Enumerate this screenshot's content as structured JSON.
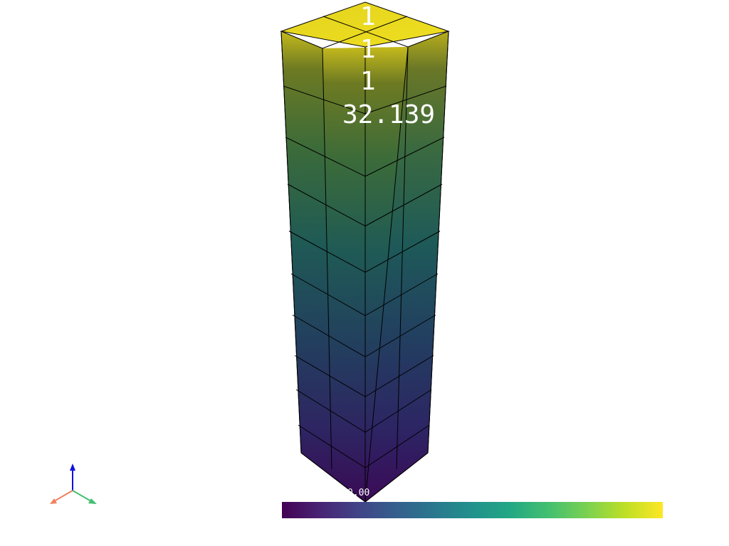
{
  "labels": {
    "row1": "1",
    "row2": "1",
    "row3": "1",
    "row4": "32.139"
  },
  "colorbar": {
    "min_label": "0.00",
    "colormap": "viridis",
    "colors": [
      "#440154",
      "#482475",
      "#414487",
      "#355f8d",
      "#2a788e",
      "#21918c",
      "#22a884",
      "#44bf70",
      "#7ad151",
      "#bddf26",
      "#fde725"
    ]
  },
  "axes_widget": {
    "x_color": "#f08060",
    "y_color": "#40c070",
    "z_color": "#1010e0"
  },
  "mesh": {
    "grid_cols": 2,
    "grid_layers": 10,
    "edge_color": "#000000"
  }
}
